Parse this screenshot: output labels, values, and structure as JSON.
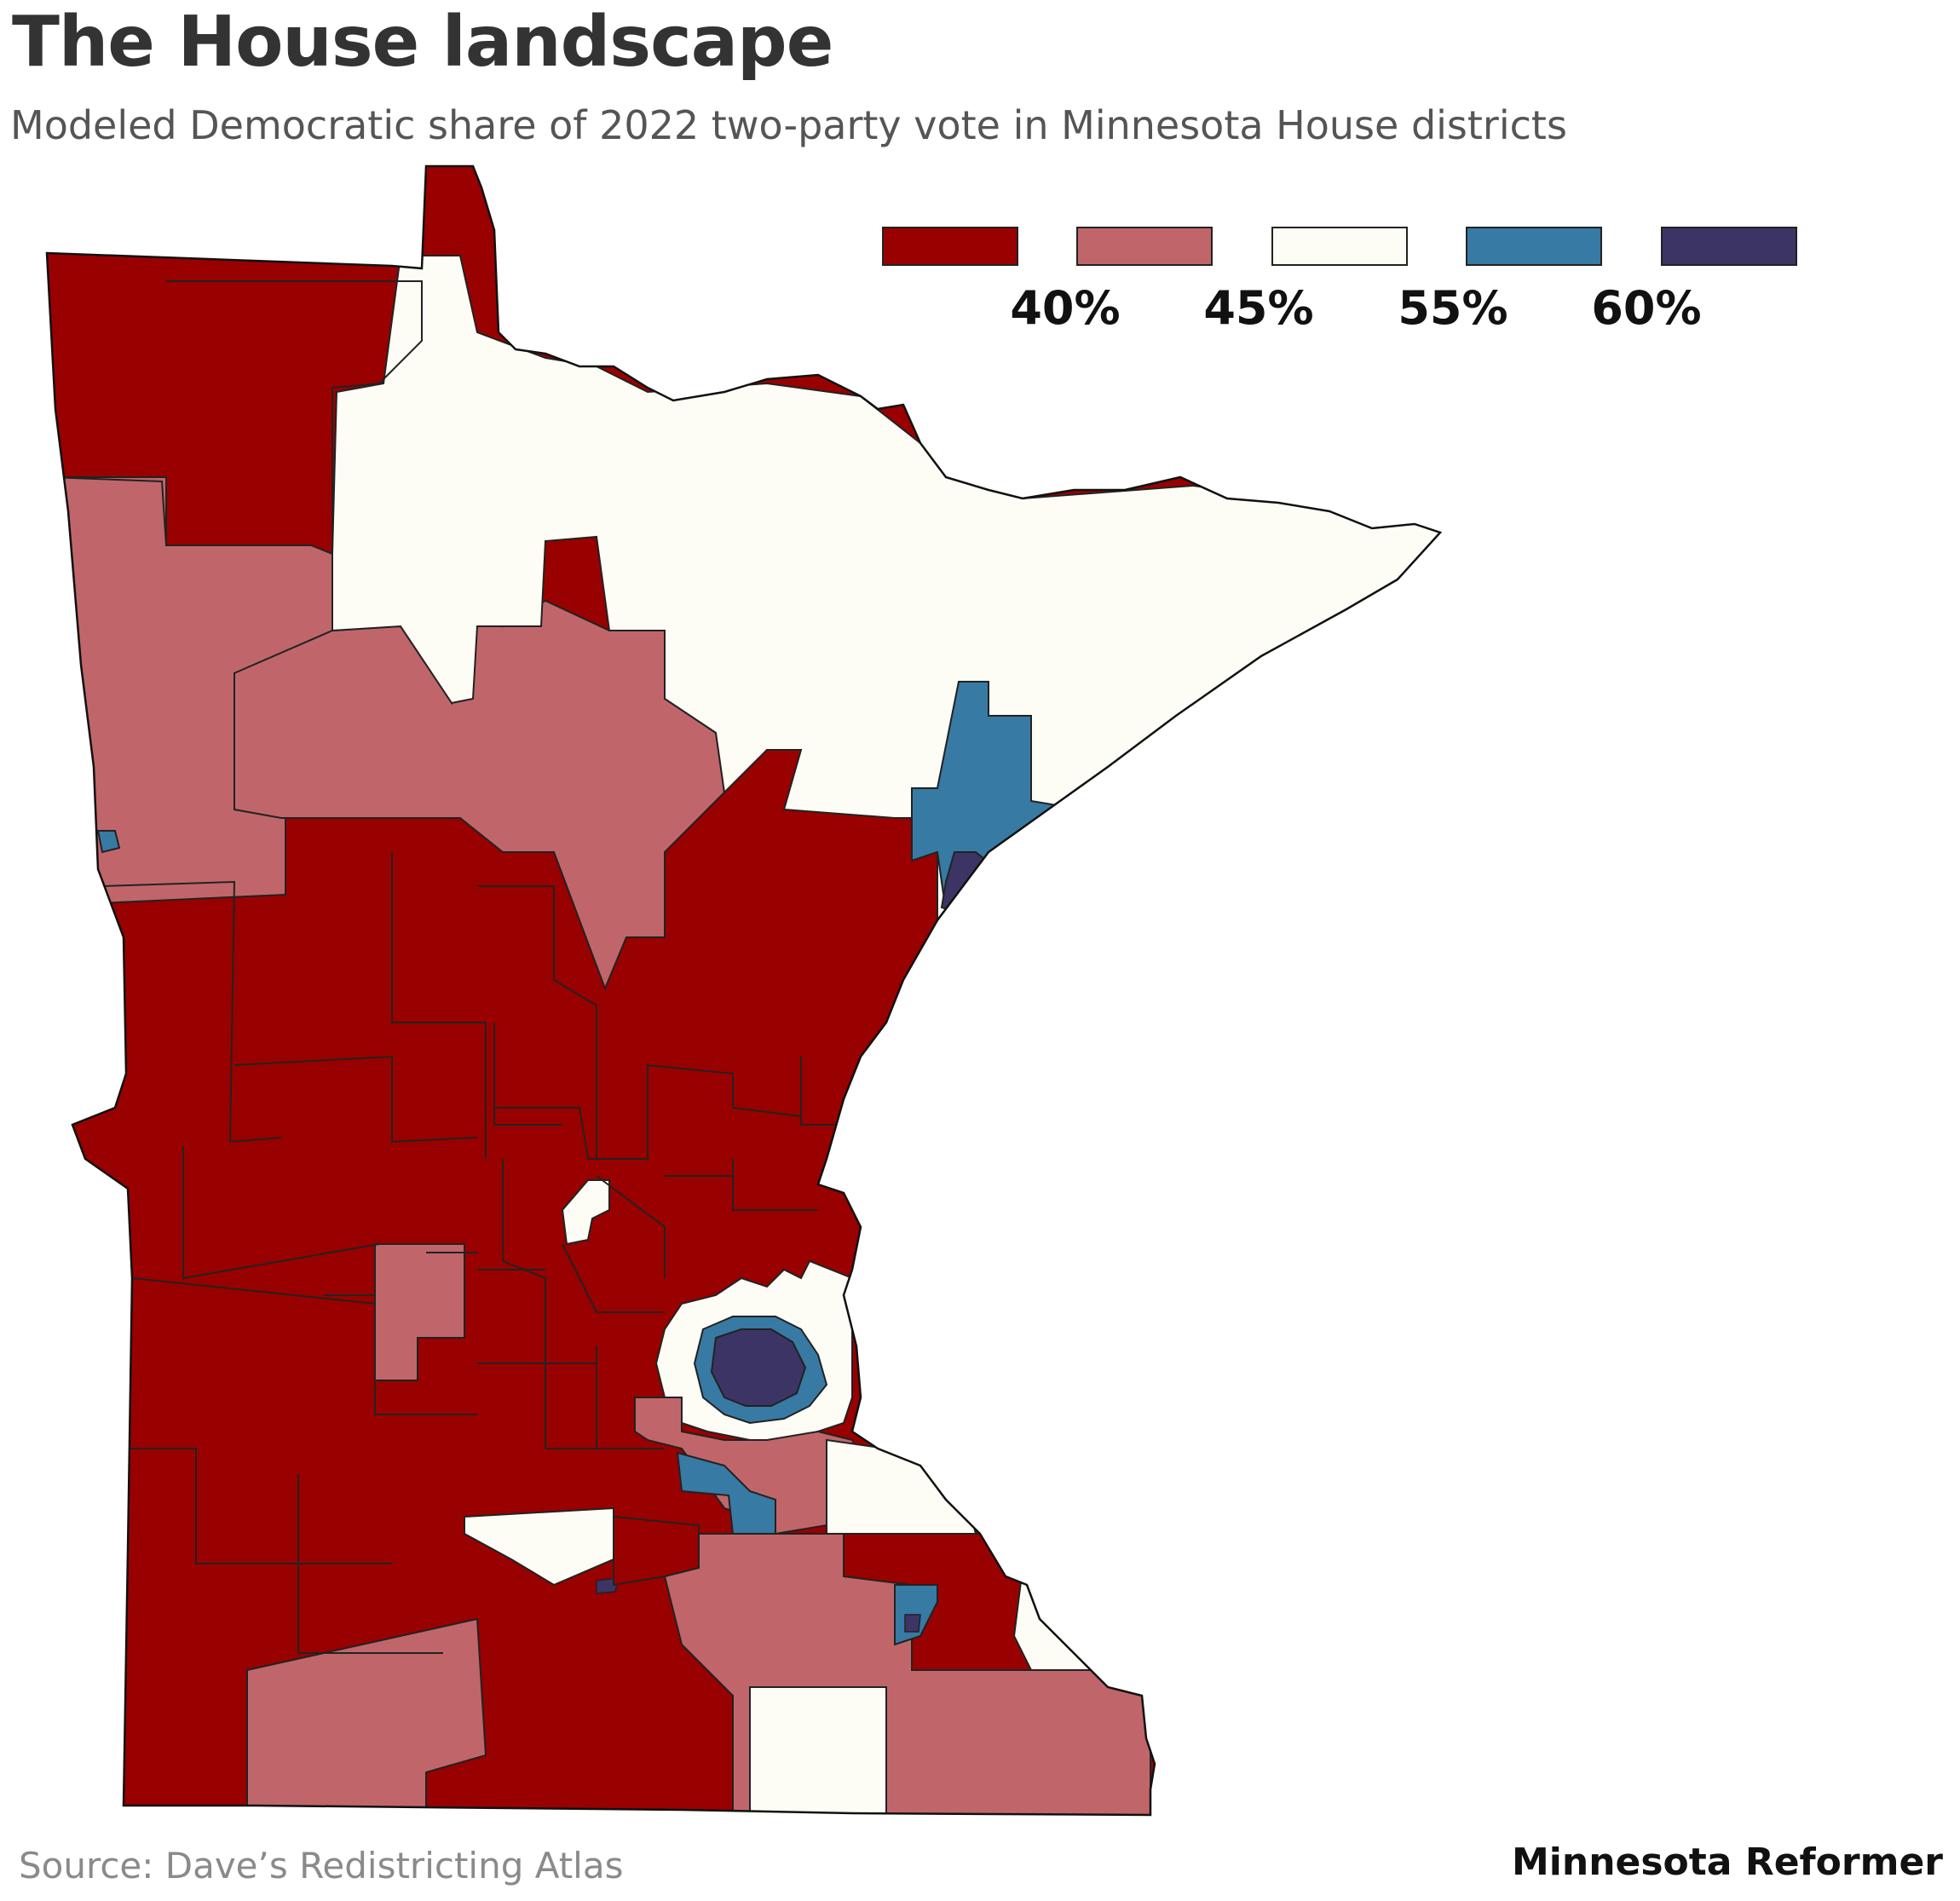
{
  "header": {
    "title": "The House landscape",
    "subtitle": "Modeled Democratic share of 2022 two-party vote in Minnesota House districts"
  },
  "legend": {
    "colors": [
      "#990000",
      "#c0666a",
      "#fdfdf6",
      "#377aa3",
      "#3d3466"
    ],
    "ticks": [
      "40%",
      "45%",
      "55%",
      "60%"
    ]
  },
  "footer": {
    "source": "Source: Dave’s Redistricting Atlas",
    "credit": "Minnesota Reformer"
  },
  "map": {
    "region": "Minnesota",
    "bins": [
      "under 40%",
      "40% to 45%",
      "45% to 55%",
      "55% to 60%",
      "over 60%"
    ]
  }
}
